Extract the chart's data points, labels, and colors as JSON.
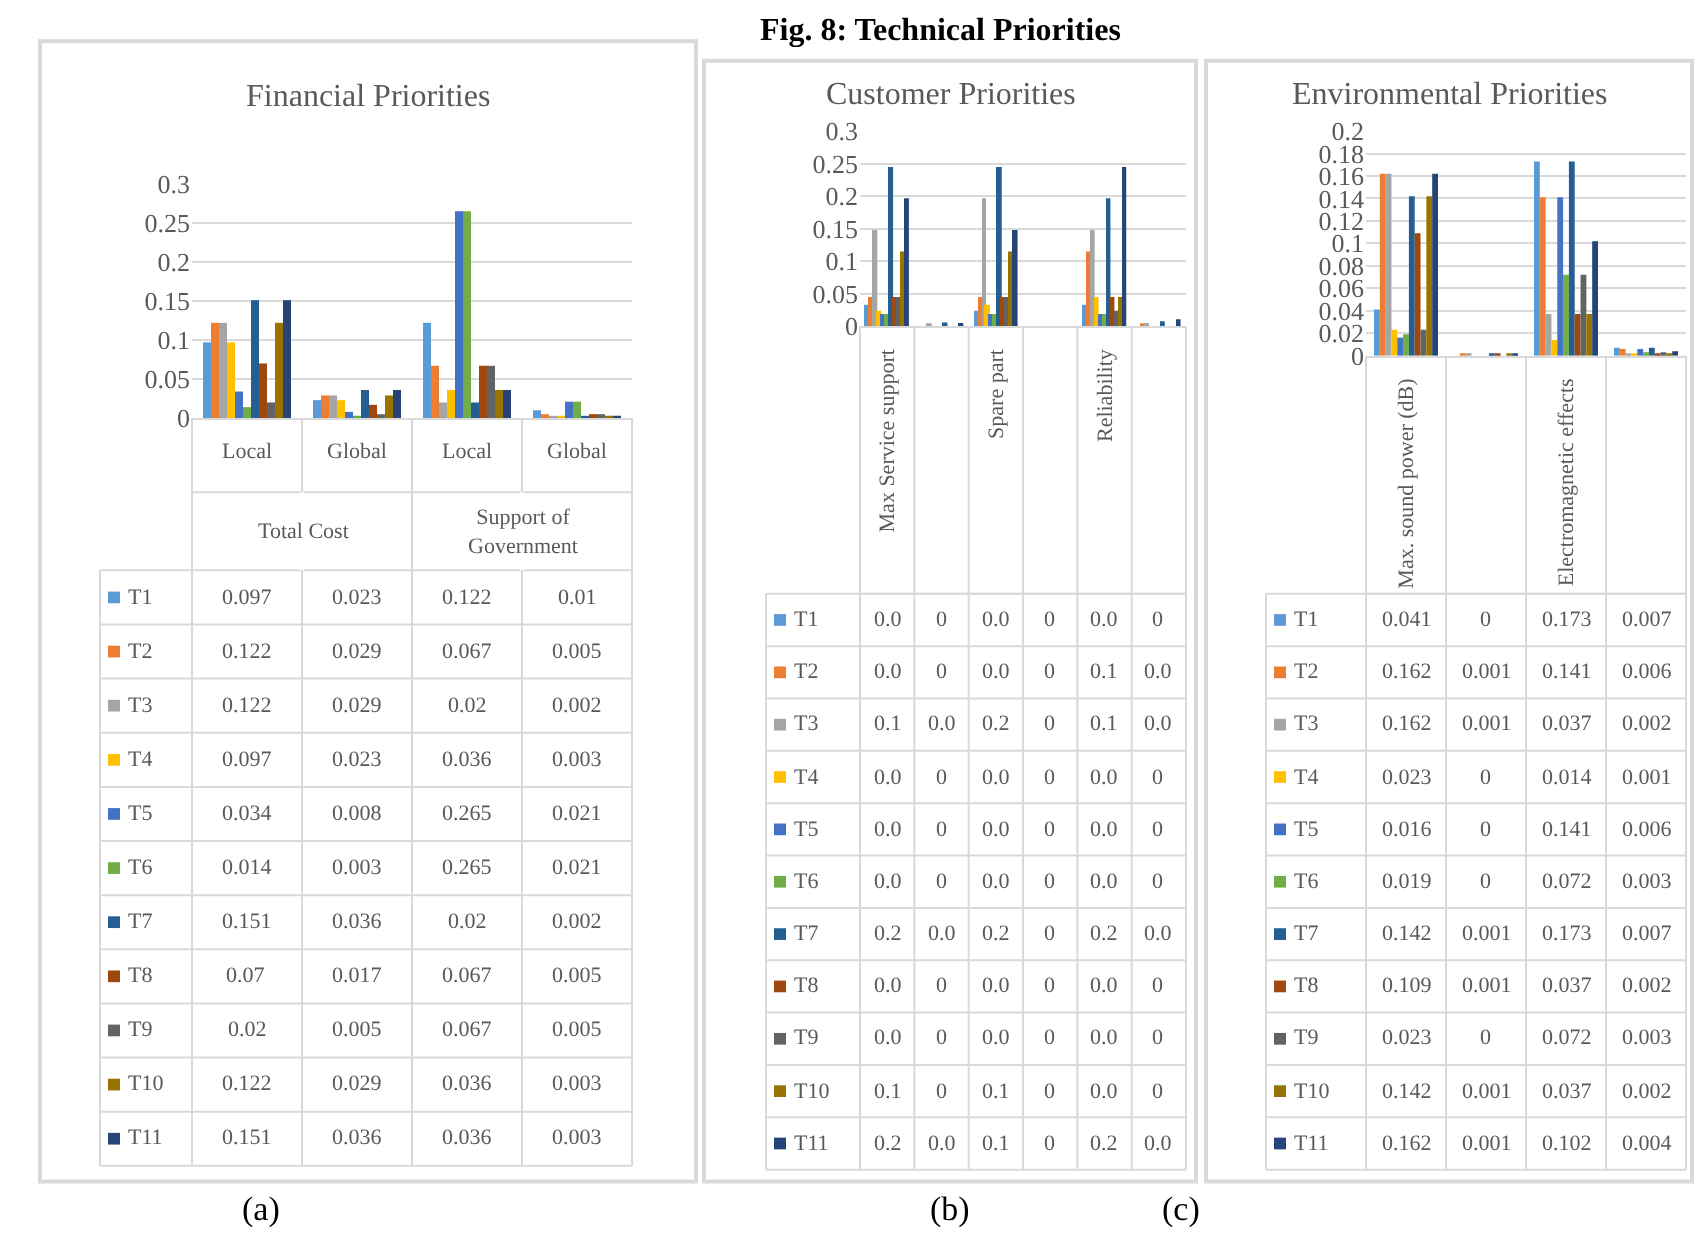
{
  "chart_data": [
    {
      "type": "bar",
      "title": "Financial Priorities",
      "categories": [
        "Local",
        "Global",
        "Local",
        "Global"
      ],
      "ylim": [
        0,
        0.3
      ],
      "yticks": [
        0,
        0.05,
        0.1,
        0.15,
        0.2,
        0.25,
        0.3
      ],
      "grid": "y",
      "data_labels": true,
      "legend": "bottom left",
      "annotations": [
        "Total Cost",
        "Support of Government",
        "(a)"
      ],
      "series": [
        {
          "name": "T1",
          "color": "#5b9bd5",
          "values": [
            0.097,
            0.023,
            0.122,
            0.01
          ]
        },
        {
          "name": "T2",
          "color": "#ed7d31",
          "values": [
            0.122,
            0.029,
            0.067,
            0.005
          ]
        },
        {
          "name": "T3",
          "color": "#a5a5a5",
          "values": [
            0.122,
            0.029,
            0.02,
            0.002
          ]
        },
        {
          "name": "T4",
          "color": "#ffc000",
          "values": [
            0.097,
            0.023,
            0.036,
            0.003
          ]
        },
        {
          "name": "T5",
          "color": "#4472c4",
          "values": [
            0.034,
            0.008,
            0.265,
            0.021
          ]
        },
        {
          "name": "T6",
          "color": "#70ad47",
          "values": [
            0.014,
            0.003,
            0.265,
            0.021
          ]
        },
        {
          "name": "T7",
          "color": "#255e91",
          "values": [
            0.151,
            0.036,
            0.02,
            0.002
          ]
        },
        {
          "name": "T8",
          "color": "#9e480e",
          "values": [
            0.07,
            0.017,
            0.067,
            0.005
          ]
        },
        {
          "name": "T9",
          "color": "#636363",
          "values": [
            0.02,
            0.005,
            0.067,
            0.005
          ]
        },
        {
          "name": "T10",
          "color": "#997300",
          "values": [
            0.122,
            0.029,
            0.036,
            0.003
          ]
        },
        {
          "name": "T11",
          "color": "#264478",
          "values": [
            0.151,
            0.036,
            0.036,
            0.003
          ]
        }
      ]
    },
    {
      "type": "bar",
      "title": "Customer Priorities",
      "categories": [
        "Max Service support",
        null,
        "Spare part",
        null,
        "Reliability",
        null
      ],
      "ylim": [
        0,
        0.3
      ],
      "yticks": [
        0,
        0.05,
        0.1,
        0.15,
        0.2,
        0.25,
        0.3
      ],
      "grid": "y",
      "legend": "bottom left",
      "annotations": [
        "Fig. 8: Technical Priorities",
        "(b)"
      ],
      "series": [
        {
          "name": "T1",
          "color": "#5b9bd5",
          "values": [
            0.033,
            0,
            0.024,
            0,
            0.033,
            0
          ],
          "value_labels": [
            "0.0",
            "0",
            "0.0",
            "0",
            "0.0",
            "0"
          ]
        },
        {
          "name": "T2",
          "color": "#ed7d31",
          "values": [
            0.045,
            0,
            0.045,
            0,
            0.115,
            0.004
          ],
          "value_labels": [
            "0.0",
            "0",
            "0.0",
            "0",
            "0.1",
            "0.0"
          ]
        },
        {
          "name": "T3",
          "color": "#a5a5a5",
          "values": [
            0.148,
            0.002,
            0.197,
            0,
            0.148,
            0.005
          ],
          "value_labels": [
            "0.1",
            "0.0",
            "0.2",
            "0",
            "0.1",
            "0.0"
          ]
        },
        {
          "name": "T4",
          "color": "#ffc000",
          "values": [
            0.024,
            0,
            0.033,
            0,
            0.045,
            0
          ],
          "value_labels": [
            "0.0",
            "0",
            "0.0",
            "0",
            "0.0",
            "0"
          ]
        },
        {
          "name": "T5",
          "color": "#4472c4",
          "values": [
            0.019,
            0,
            0.019,
            0,
            0.019,
            0
          ],
          "value_labels": [
            "0.0",
            "0",
            "0.0",
            "0",
            "0.0",
            "0"
          ]
        },
        {
          "name": "T6",
          "color": "#70ad47",
          "values": [
            0.019,
            0,
            0.019,
            0,
            0.019,
            0
          ],
          "value_labels": [
            "0.0",
            "0",
            "0.0",
            "0",
            "0.0",
            "0"
          ]
        },
        {
          "name": "T7",
          "color": "#255e91",
          "values": [
            0.245,
            0.006,
            0.245,
            0,
            0.197,
            0.008
          ],
          "value_labels": [
            "0.2",
            "0.0",
            "0.2",
            "0",
            "0.2",
            "0.0"
          ]
        },
        {
          "name": "T8",
          "color": "#9e480e",
          "values": [
            0.045,
            0,
            0.045,
            0,
            0.045,
            0
          ],
          "value_labels": [
            "0.0",
            "0",
            "0.0",
            "0",
            "0.0",
            "0"
          ]
        },
        {
          "name": "T9",
          "color": "#636363",
          "values": [
            0.045,
            0,
            0.045,
            0,
            0.024,
            0
          ],
          "value_labels": [
            "0.0",
            "0",
            "0.0",
            "0",
            "0.0",
            "0"
          ]
        },
        {
          "name": "T10",
          "color": "#997300",
          "values": [
            0.115,
            0,
            0.115,
            0,
            0.045,
            0
          ],
          "value_labels": [
            "0.1",
            "0",
            "0.1",
            "0",
            "0.0",
            "0"
          ]
        },
        {
          "name": "T11",
          "color": "#264478",
          "values": [
            0.197,
            0.005,
            0.148,
            0,
            0.245,
            0.011
          ],
          "value_labels": [
            "0.2",
            "0.0",
            "0.1",
            "0",
            "0.2",
            "0.0"
          ]
        }
      ]
    },
    {
      "type": "bar",
      "title": "Environmental Priorities",
      "categories": [
        "Max. sound power (dB)",
        null,
        "Electromagnetic effects",
        null
      ],
      "ylim": [
        0,
        0.2
      ],
      "yticks": [
        0,
        0.02,
        0.04,
        0.06,
        0.08,
        0.1,
        0.12,
        0.14,
        0.16,
        0.18,
        0.2
      ],
      "grid": "y",
      "data_labels": true,
      "legend": "bottom left",
      "annotations": [
        "(c)"
      ],
      "series": [
        {
          "name": "T1",
          "color": "#5b9bd5",
          "values": [
            0.041,
            0,
            0.173,
            0.007
          ]
        },
        {
          "name": "T2",
          "color": "#ed7d31",
          "values": [
            0.162,
            0.001,
            0.141,
            0.006
          ]
        },
        {
          "name": "T3",
          "color": "#a5a5a5",
          "values": [
            0.162,
            0.001,
            0.037,
            0.002
          ]
        },
        {
          "name": "T4",
          "color": "#ffc000",
          "values": [
            0.023,
            0,
            0.014,
            0.001
          ]
        },
        {
          "name": "T5",
          "color": "#4472c4",
          "values": [
            0.016,
            0,
            0.141,
            0.006
          ]
        },
        {
          "name": "T6",
          "color": "#70ad47",
          "values": [
            0.019,
            0,
            0.072,
            0.003
          ]
        },
        {
          "name": "T7",
          "color": "#255e91",
          "values": [
            0.142,
            0.001,
            0.173,
            0.007
          ]
        },
        {
          "name": "T8",
          "color": "#9e480e",
          "values": [
            0.109,
            0.001,
            0.037,
            0.002
          ]
        },
        {
          "name": "T9",
          "color": "#636363",
          "values": [
            0.023,
            0,
            0.072,
            0.003
          ]
        },
        {
          "name": "T10",
          "color": "#997300",
          "values": [
            0.142,
            0.001,
            0.037,
            0.002
          ]
        },
        {
          "name": "T11",
          "color": "#264478",
          "values": [
            0.162,
            0.001,
            0.102,
            0.004
          ]
        }
      ]
    }
  ]
}
